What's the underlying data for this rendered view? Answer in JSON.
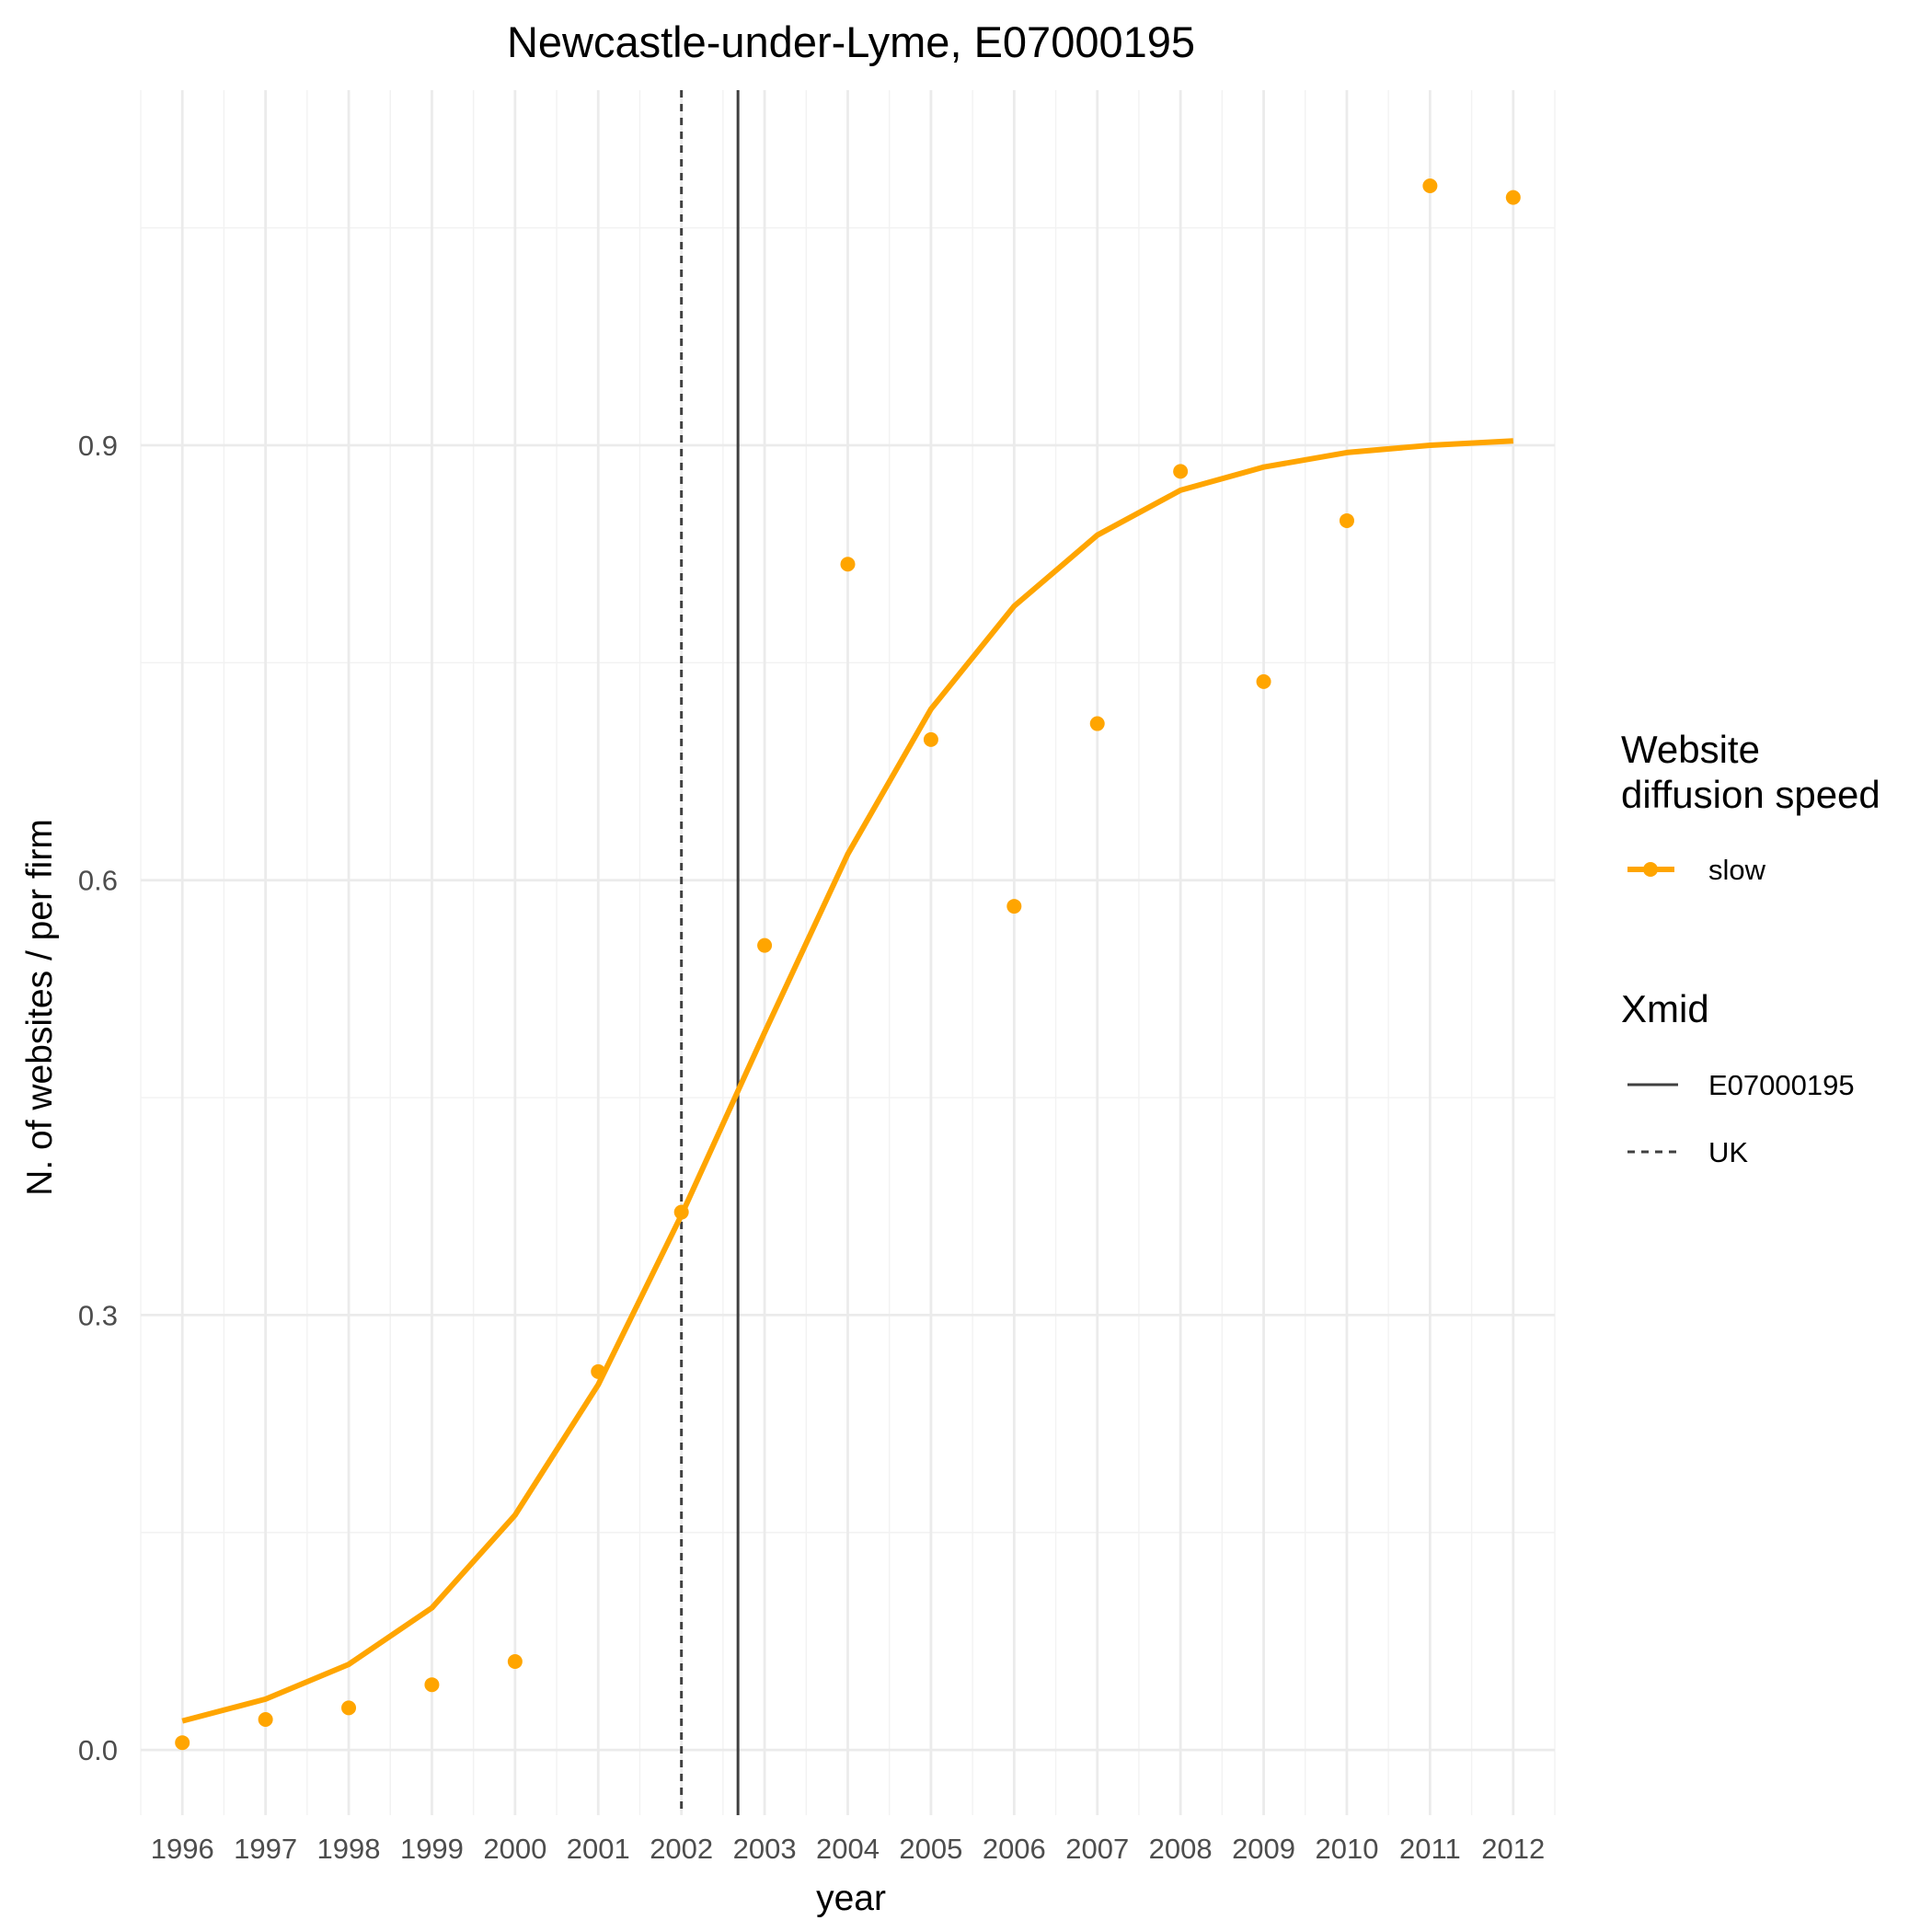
{
  "chart_data": {
    "type": "line",
    "title": "Newcastle-under-Lyme, E07000195",
    "xlabel": "year",
    "ylabel": "N. of websites / per firm",
    "x": [
      1996,
      1997,
      1998,
      1999,
      2000,
      2001,
      2002,
      2003,
      2004,
      2005,
      2006,
      2007,
      2008,
      2009,
      2010,
      2011,
      2012
    ],
    "x_tick_labels": [
      "1996",
      "1997",
      "1998",
      "1999",
      "2000",
      "2001",
      "2002",
      "2003",
      "2004",
      "2005",
      "2006",
      "2007",
      "2008",
      "2009",
      "2010",
      "2011",
      "2012"
    ],
    "y_ticks": [
      0.0,
      0.3,
      0.6,
      0.9
    ],
    "y_tick_labels": [
      "0.0",
      "0.3",
      "0.6",
      "0.9"
    ],
    "xlim": [
      1995.5,
      2012.5
    ],
    "ylim": [
      -0.045,
      1.145
    ],
    "grid": true,
    "legend_position": "right",
    "series": [
      {
        "name": "slow",
        "kind": "points",
        "color": "#FFA500",
        "values": [
          0.005,
          0.021,
          0.029,
          0.045,
          0.061,
          0.261,
          0.371,
          0.555,
          0.818,
          0.697,
          0.582,
          0.708,
          0.882,
          0.737,
          0.848,
          1.079,
          1.071
        ]
      },
      {
        "name": "slow",
        "kind": "fitted-line",
        "color": "#FFA500",
        "values": [
          0.02,
          0.035,
          0.059,
          0.098,
          0.162,
          0.252,
          0.369,
          0.495,
          0.618,
          0.718,
          0.789,
          0.838,
          0.869,
          0.885,
          0.895,
          0.9,
          0.903
        ]
      }
    ],
    "reference_lines": [
      {
        "name": "E07000195",
        "x": 2002.68,
        "style": "solid",
        "color": "#404040"
      },
      {
        "name": "UK",
        "x": 2002.0,
        "style": "dashed",
        "color": "#404040"
      }
    ],
    "legend": {
      "speed_title_line1": "Website",
      "speed_title_line2": "diffusion speed",
      "speed_label": "slow",
      "xmid_title": "Xmid",
      "xmid_labels": [
        "E07000195",
        "UK"
      ]
    }
  }
}
